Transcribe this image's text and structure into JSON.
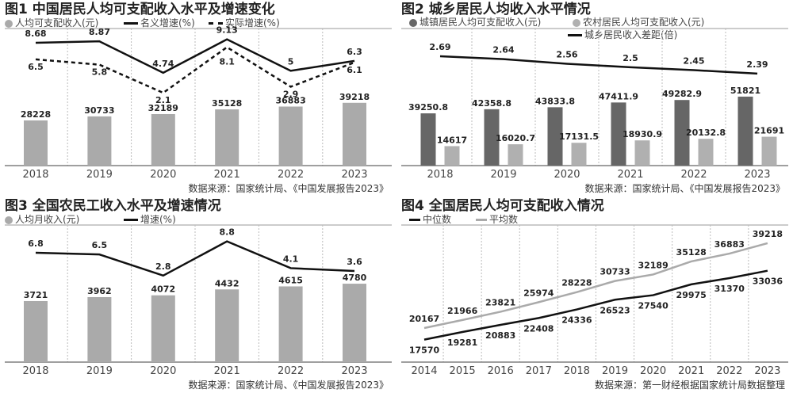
{
  "chart_data": [
    {
      "type": "bar+line",
      "title": "图1 中国居民人均可支配收入水平及增速变化",
      "legend": [
        {
          "label": "人均可支配收入(元)",
          "marker": "dot",
          "color": "#aaaaaa"
        },
        {
          "label": "名义增速(%)",
          "marker": "line",
          "color": "#111111"
        },
        {
          "label": "实际增速(%)",
          "marker": "dashed-line",
          "color": "#111111"
        }
      ],
      "categories": [
        "2018",
        "2019",
        "2020",
        "2021",
        "2022",
        "2023"
      ],
      "series": [
        {
          "name": "人均可支配收入(元)",
          "type": "bar",
          "color": "#aaaaaa",
          "values": [
            28228,
            30733,
            32189,
            35128,
            36883,
            39218
          ]
        },
        {
          "name": "名义增速(%)",
          "type": "line",
          "color": "#111111",
          "values": [
            8.68,
            8.87,
            4.74,
            9.13,
            5,
            6.3
          ]
        },
        {
          "name": "实际增速(%)",
          "type": "dashed-line",
          "color": "#111111",
          "values": [
            6.5,
            5.8,
            2.1,
            8.1,
            2.9,
            6.1
          ]
        }
      ],
      "grid": "vertical dotted separators",
      "source": "数据来源：国家统计局、《中国发展报告2023》"
    },
    {
      "type": "grouped-bar+line",
      "title": "图2 城乡居民人均收入水平情况",
      "legend": [
        {
          "label": "城镇居民人均可支配收入(元)",
          "marker": "dot",
          "color": "#666666"
        },
        {
          "label": "农村居民人均可支配收入(元)",
          "marker": "dot",
          "color": "#b0b0b0"
        },
        {
          "label": "城乡居民收入差距(倍)",
          "marker": "line",
          "color": "#111111"
        }
      ],
      "categories": [
        "2018",
        "2019",
        "2020",
        "2021",
        "2022",
        "2023"
      ],
      "series": [
        {
          "name": "城镇居民人均可支配收入(元)",
          "type": "bar",
          "color": "#666666",
          "values": [
            39250.8,
            42358.8,
            43833.8,
            47411.9,
            49282.9,
            51821
          ]
        },
        {
          "name": "农村居民人均可支配收入(元)",
          "type": "bar",
          "color": "#b0b0b0",
          "values": [
            14617,
            16020.7,
            17131.5,
            18930.9,
            20132.8,
            21691
          ]
        },
        {
          "name": "城乡居民收入差距(倍)",
          "type": "line",
          "color": "#111111",
          "values": [
            2.69,
            2.64,
            2.56,
            2.5,
            2.45,
            2.39
          ]
        }
      ],
      "grid": "vertical dotted separators",
      "source": "数据来源：国家统计局、《中国发展报告2023》"
    },
    {
      "type": "bar+line",
      "title": "图3 全国农民工收入水平及增速情况",
      "legend": [
        {
          "label": "人均月收入(元)",
          "marker": "dot",
          "color": "#aaaaaa"
        },
        {
          "label": "增速(%)",
          "marker": "line",
          "color": "#111111"
        }
      ],
      "categories": [
        "2018",
        "2019",
        "2020",
        "2021",
        "2022",
        "2023"
      ],
      "series": [
        {
          "name": "人均月收入(元)",
          "type": "bar",
          "color": "#aaaaaa",
          "values": [
            3721,
            3962,
            4072,
            4432,
            4615,
            4780
          ]
        },
        {
          "name": "增速(%)",
          "type": "line",
          "color": "#111111",
          "values": [
            6.8,
            6.5,
            2.8,
            8.8,
            4.1,
            3.6
          ]
        }
      ],
      "grid": "vertical dotted separators",
      "source": "数据来源：国家统计局、《中国发展报告2023》"
    },
    {
      "type": "line",
      "title": "图4 全国居民人均可支配收入情况",
      "legend": [
        {
          "label": "中位数",
          "marker": "line",
          "color": "#111111"
        },
        {
          "label": "平均数",
          "marker": "line",
          "color": "#aaaaaa"
        }
      ],
      "categories": [
        "2014",
        "2015",
        "2016",
        "2017",
        "2018",
        "2019",
        "2020",
        "2021",
        "2022",
        "2023"
      ],
      "series": [
        {
          "name": "中位数",
          "type": "line",
          "color": "#111111",
          "values": [
            17570,
            19281,
            20883,
            22408,
            24336,
            26523,
            27540,
            29975,
            31370,
            33036
          ]
        },
        {
          "name": "平均数",
          "type": "line",
          "color": "#aaaaaa",
          "values": [
            20167,
            21966,
            23821,
            25974,
            28228,
            30733,
            32189,
            35128,
            36883,
            39218
          ]
        }
      ],
      "grid": "vertical dotted separators",
      "source": "数据来源：第一财经根据国家统计局数据整理"
    }
  ]
}
